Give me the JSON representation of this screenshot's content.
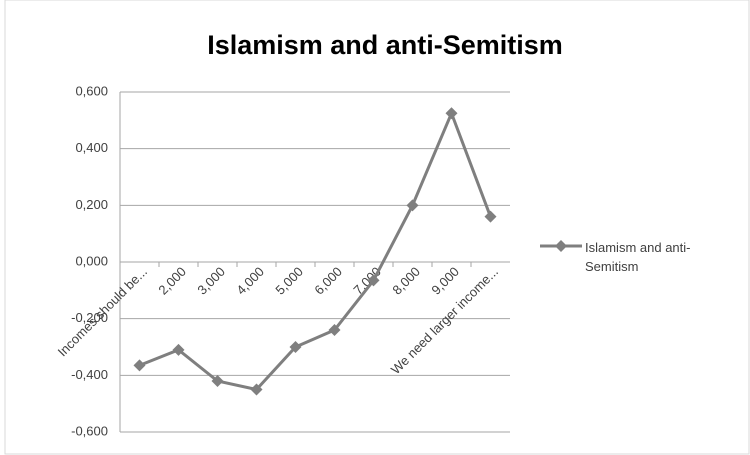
{
  "chart_data": {
    "type": "line",
    "title": "Islamism and anti-Semitism",
    "categories": [
      "Incomes should be...",
      "2,000",
      "3,000",
      "4,000",
      "5,000",
      "6,000",
      "7,000",
      "8,000",
      "9,000",
      "We need larger income..."
    ],
    "series": [
      {
        "name": "Islamism and anti-Semitism",
        "color": "#7f7f7f",
        "values": [
          -0.365,
          -0.31,
          -0.42,
          -0.45,
          -0.3,
          -0.24,
          -0.065,
          0.2,
          0.525,
          0.16
        ]
      }
    ],
    "ylim": [
      -0.6,
      0.6
    ],
    "yticks": [
      {
        "value": -0.6,
        "label": "-0,600"
      },
      {
        "value": -0.4,
        "label": "-0,400"
      },
      {
        "value": -0.2,
        "label": "-0,200"
      },
      {
        "value": 0,
        "label": "0,000"
      },
      {
        "value": 0.2,
        "label": "0,200"
      },
      {
        "value": 0.4,
        "label": "0,400"
      },
      {
        "value": 0.6,
        "label": "0,600"
      }
    ],
    "grid": true,
    "legend": "right"
  }
}
